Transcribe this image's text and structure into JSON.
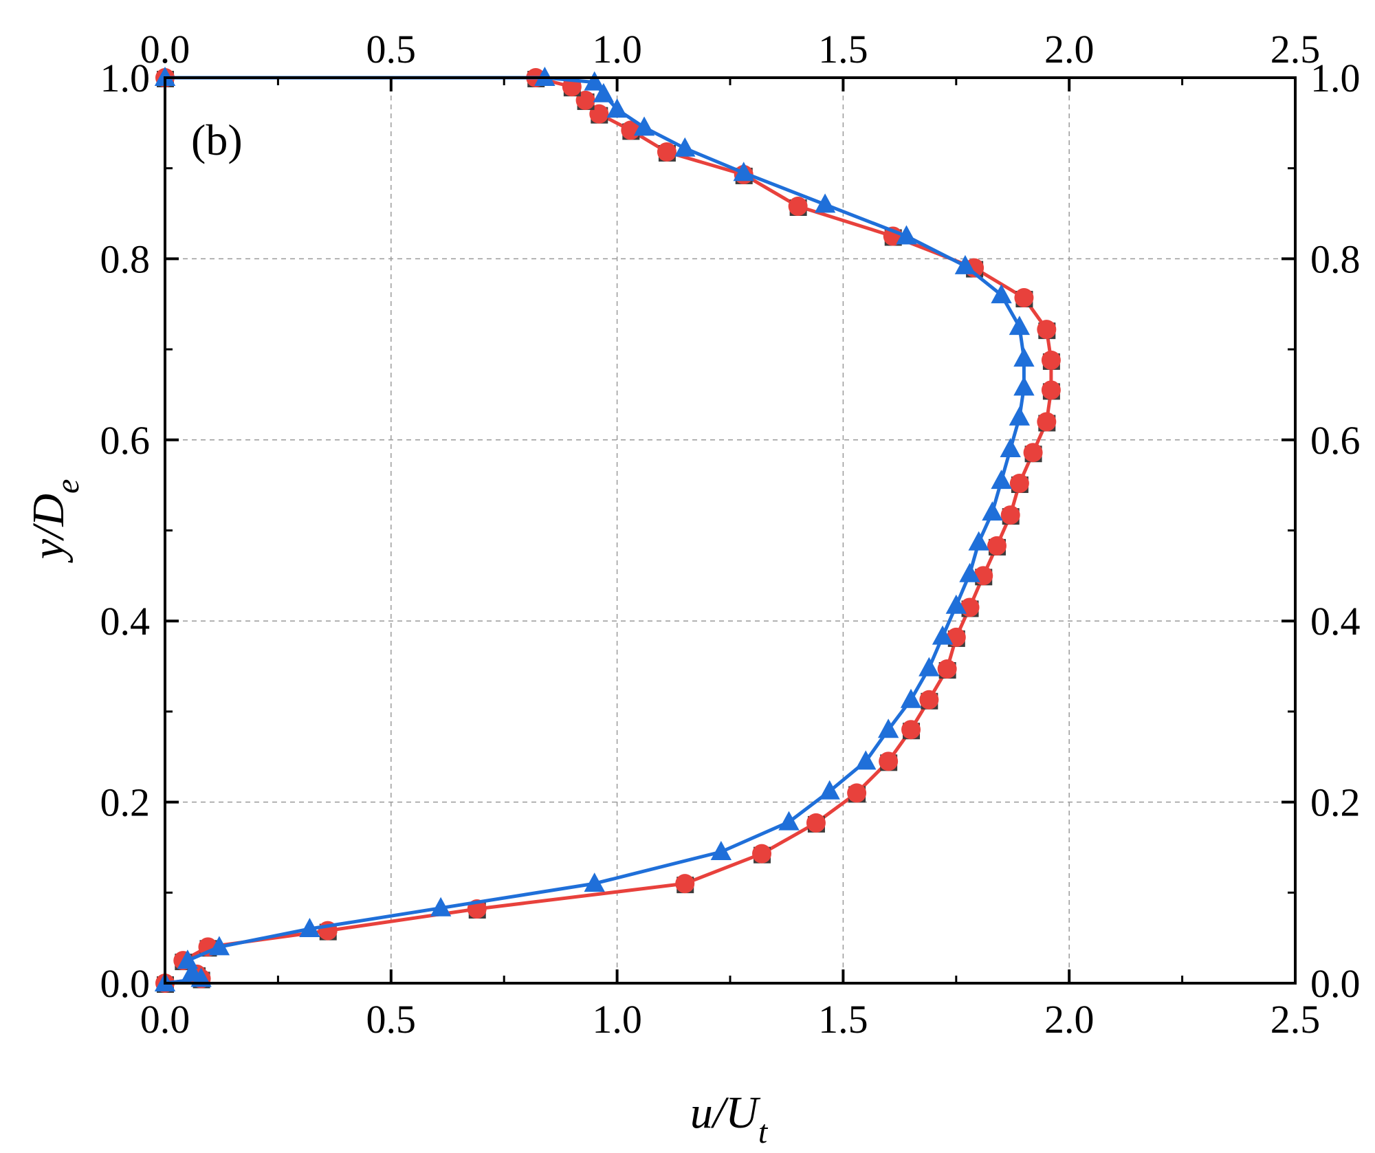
{
  "chart_data": {
    "type": "line",
    "panel_label": "(b)",
    "xlabel": {
      "main": "u/U",
      "sub": "t"
    },
    "ylabel": {
      "main": "y/D",
      "sub": "e"
    },
    "xlim": [
      0,
      2.5
    ],
    "ylim": [
      0,
      1.0
    ],
    "x_ticks": [
      "0.0",
      "0.5",
      "1.0",
      "1.5",
      "2.0",
      "2.5"
    ],
    "y_ticks": [
      "0.0",
      "0.2",
      "0.4",
      "0.6",
      "0.8",
      "1.0"
    ],
    "x_tick_values": [
      0,
      0.5,
      1.0,
      1.5,
      2.0,
      2.5
    ],
    "y_tick_values": [
      0,
      0.2,
      0.4,
      0.6,
      0.8,
      1.0
    ],
    "ticks_mirrored": true,
    "grid": "dashed",
    "series": [
      {
        "color": "#e8413c",
        "marker": "circle",
        "points": [
          [
            0.0,
            0.0
          ],
          [
            0.08,
            0.005
          ],
          [
            0.07,
            0.01
          ],
          [
            0.04,
            0.025
          ],
          [
            0.095,
            0.04
          ],
          [
            0.36,
            0.058
          ],
          [
            0.69,
            0.082
          ],
          [
            1.15,
            0.11
          ],
          [
            1.32,
            0.143
          ],
          [
            1.44,
            0.177
          ],
          [
            1.53,
            0.21
          ],
          [
            1.6,
            0.245
          ],
          [
            1.65,
            0.28
          ],
          [
            1.69,
            0.313
          ],
          [
            1.73,
            0.347
          ],
          [
            1.75,
            0.382
          ],
          [
            1.78,
            0.415
          ],
          [
            1.81,
            0.45
          ],
          [
            1.84,
            0.483
          ],
          [
            1.87,
            0.517
          ],
          [
            1.89,
            0.552
          ],
          [
            1.92,
            0.586
          ],
          [
            1.95,
            0.62
          ],
          [
            1.96,
            0.655
          ],
          [
            1.96,
            0.688
          ],
          [
            1.95,
            0.722
          ],
          [
            1.9,
            0.757
          ],
          [
            1.79,
            0.79
          ],
          [
            1.61,
            0.825
          ],
          [
            1.4,
            0.858
          ],
          [
            1.28,
            0.893
          ],
          [
            1.11,
            0.918
          ],
          [
            1.03,
            0.942
          ],
          [
            0.96,
            0.96
          ],
          [
            0.93,
            0.975
          ],
          [
            0.9,
            0.99
          ],
          [
            0.82,
            1.0
          ],
          [
            0.0,
            1.0
          ]
        ]
      },
      {
        "color": "#1f6fd9",
        "marker": "triangle",
        "points": [
          [
            0.0,
            0.0
          ],
          [
            0.08,
            0.005
          ],
          [
            0.06,
            0.012
          ],
          [
            0.05,
            0.025
          ],
          [
            0.12,
            0.04
          ],
          [
            0.32,
            0.06
          ],
          [
            0.61,
            0.083
          ],
          [
            0.95,
            0.11
          ],
          [
            1.23,
            0.145
          ],
          [
            1.38,
            0.178
          ],
          [
            1.47,
            0.212
          ],
          [
            1.55,
            0.245
          ],
          [
            1.6,
            0.28
          ],
          [
            1.65,
            0.313
          ],
          [
            1.69,
            0.348
          ],
          [
            1.72,
            0.383
          ],
          [
            1.75,
            0.417
          ],
          [
            1.78,
            0.452
          ],
          [
            1.8,
            0.487
          ],
          [
            1.83,
            0.52
          ],
          [
            1.85,
            0.555
          ],
          [
            1.87,
            0.59
          ],
          [
            1.89,
            0.625
          ],
          [
            1.9,
            0.658
          ],
          [
            1.9,
            0.69
          ],
          [
            1.89,
            0.725
          ],
          [
            1.85,
            0.76
          ],
          [
            1.77,
            0.792
          ],
          [
            1.64,
            0.825
          ],
          [
            1.46,
            0.86
          ],
          [
            1.28,
            0.895
          ],
          [
            1.15,
            0.922
          ],
          [
            1.06,
            0.945
          ],
          [
            1.0,
            0.965
          ],
          [
            0.97,
            0.982
          ],
          [
            0.95,
            0.995
          ],
          [
            0.84,
            1.0
          ],
          [
            0.0,
            1.0
          ]
        ]
      }
    ]
  }
}
